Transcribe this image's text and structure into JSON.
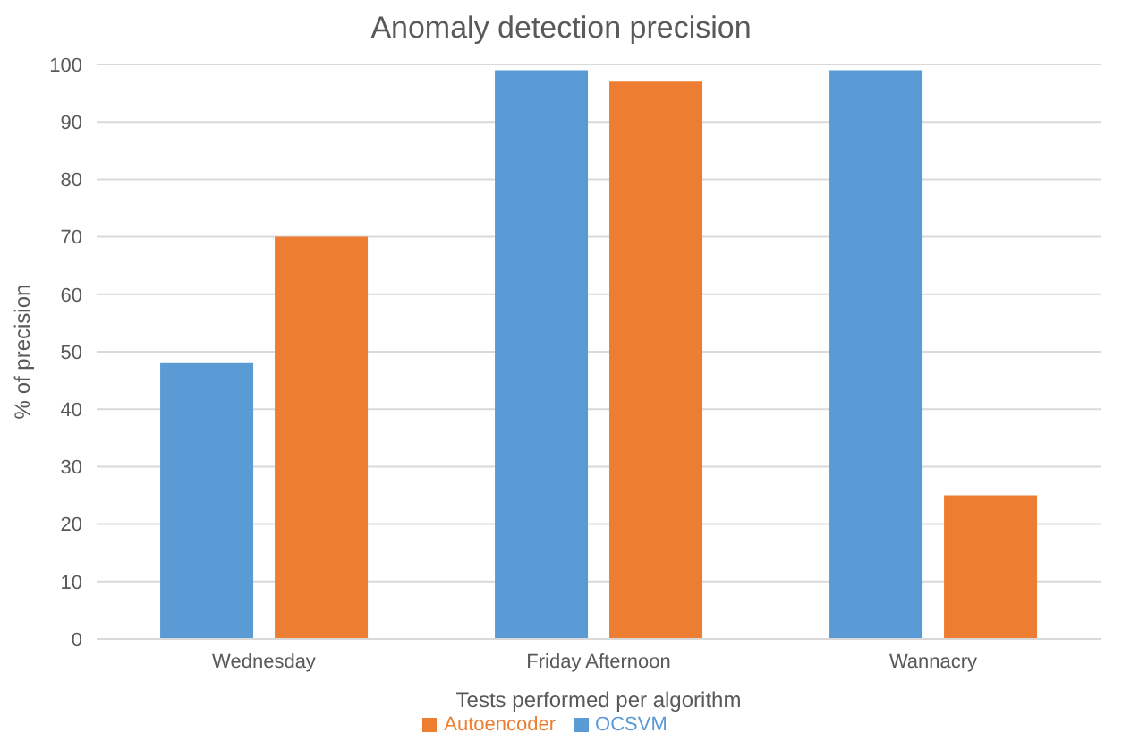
{
  "chart_data": {
    "type": "bar",
    "title": "Anomaly detection precision",
    "xlabel": "Tests performed per algorithm",
    "ylabel": "% of precision",
    "categories": [
      "Wednesday",
      "Friday Afternoon",
      "Wannacry"
    ],
    "series": [
      {
        "name": "OCSVM",
        "color": "#5b9bd5",
        "values": [
          48,
          99,
          99
        ]
      },
      {
        "name": "Autoencoder",
        "color": "#ed7d31",
        "values": [
          70,
          97,
          25
        ]
      }
    ],
    "ylim": [
      0,
      100
    ],
    "yticks": [
      0,
      10,
      20,
      30,
      40,
      50,
      60,
      70,
      80,
      90,
      100
    ],
    "grid": "y",
    "legend": "bottom"
  }
}
